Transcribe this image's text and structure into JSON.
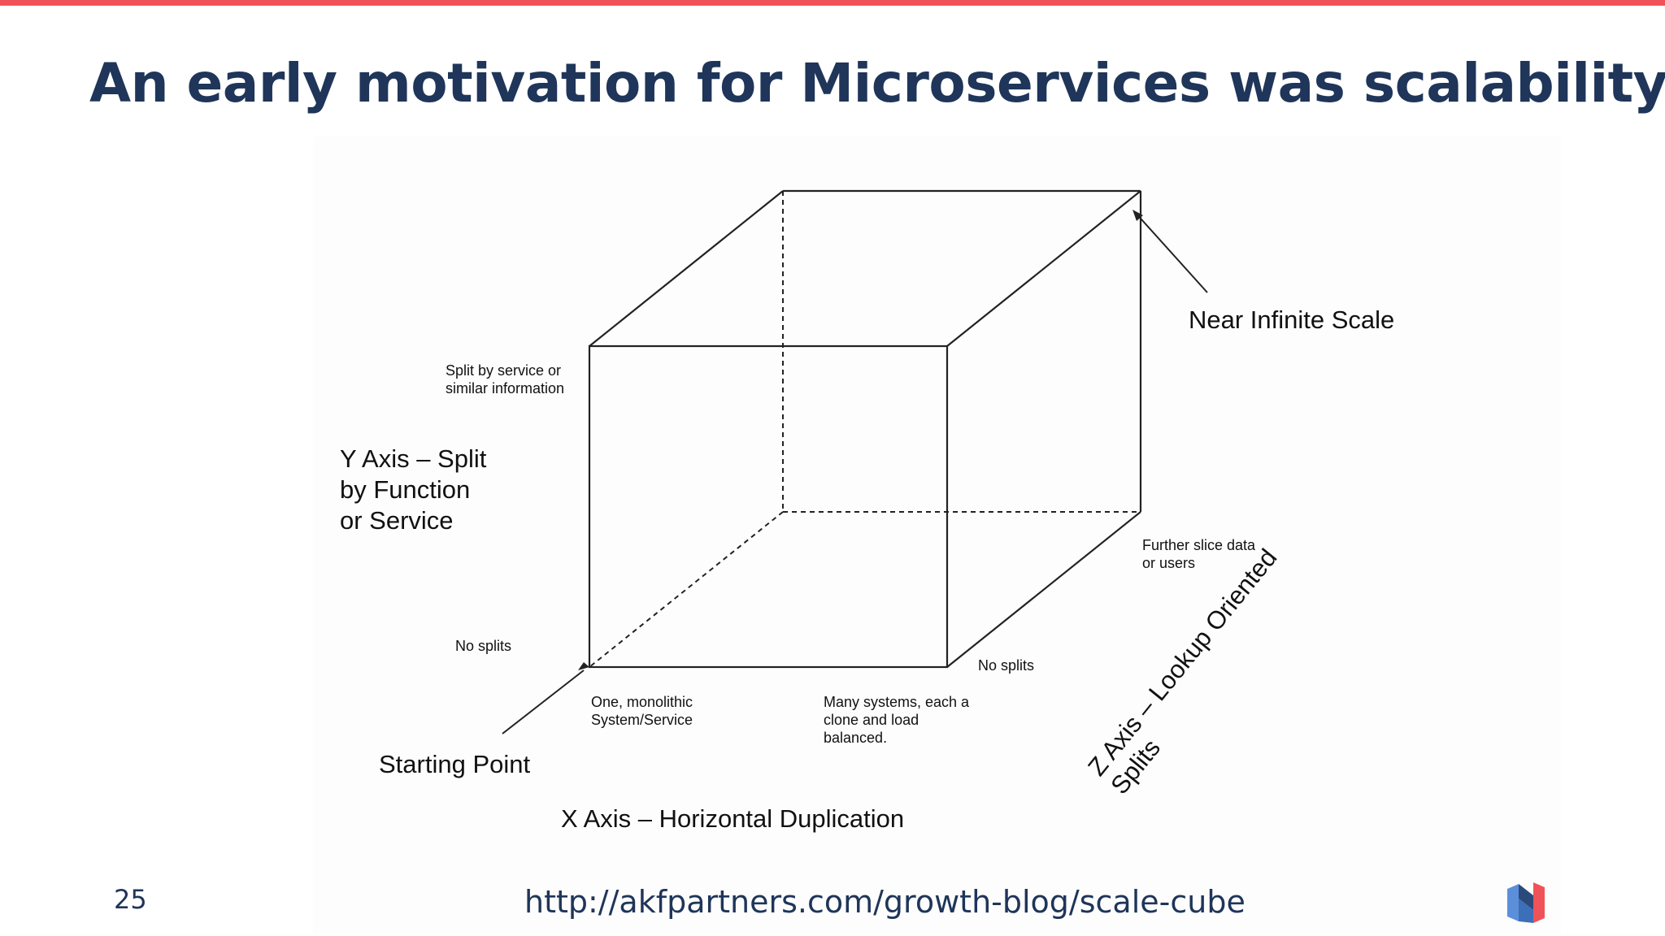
{
  "slide": {
    "title": "An early motivation for Microservices was scalability",
    "page_number": "25",
    "source_url": "http://akfpartners.com/growth-blog/scale-cube",
    "accent_color": "#f0525a",
    "title_color": "#1f3559"
  },
  "diagram": {
    "labels": {
      "near_infinite_scale": "Near Infinite Scale",
      "y_split_line1": "Split by service or",
      "y_split_line2": "similar information",
      "y_axis_line1": "Y Axis – Split",
      "y_axis_line2": "by Function",
      "y_axis_line3": "or Service",
      "no_splits_y": "No splits",
      "starting_point": "Starting Point",
      "monolithic_line1": "One, monolithic",
      "monolithic_line2": "System/Service",
      "many_line1": "Many systems, each a",
      "many_line2": "clone and load",
      "many_line3": "balanced.",
      "no_splits_x": "No splits",
      "further_line1": "Further slice data",
      "further_line2": "or users",
      "z_axis_line1": "Z Axis – Lookup Oriented",
      "z_axis_line2": "Splits",
      "x_axis": "X Axis – Horizontal Duplication"
    }
  },
  "logo": {
    "icon": "layered-n-logo-icon",
    "colors": [
      "#f0525a",
      "#5b8fd9",
      "#2a4a7a"
    ]
  }
}
